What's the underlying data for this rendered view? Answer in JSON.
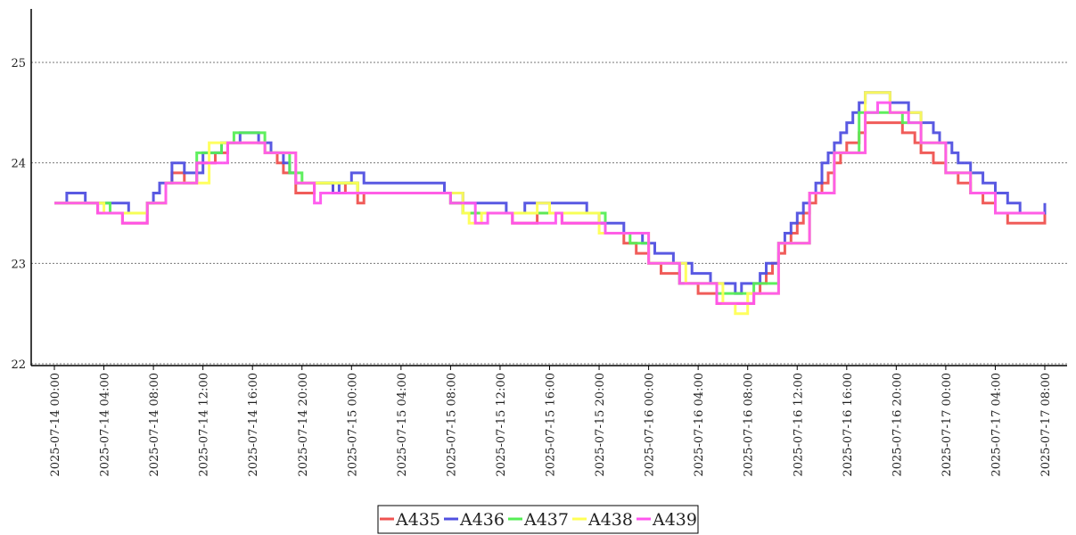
{
  "chart_data": {
    "type": "line",
    "step": true,
    "title": "",
    "xlabel": "",
    "ylabel": "",
    "ylim": [
      22,
      25.5
    ],
    "yticks": [
      "22",
      "23",
      "24",
      "25"
    ],
    "xticks": [
      "2025-07-14 00:00",
      "2025-07-14 04:00",
      "2025-07-14 08:00",
      "2025-07-14 12:00",
      "2025-07-14 16:00",
      "2025-07-14 20:00",
      "2025-07-15 00:00",
      "2025-07-15 04:00",
      "2025-07-15 08:00",
      "2025-07-15 12:00",
      "2025-07-15 16:00",
      "2025-07-15 20:00",
      "2025-07-16 00:00",
      "2025-07-16 04:00",
      "2025-07-16 08:00",
      "2025-07-16 12:00",
      "2025-07-16 16:00",
      "2025-07-16 20:00",
      "2025-07-17 00:00",
      "2025-07-17 04:00",
      "2025-07-17 08:00"
    ],
    "grid": "horizontal dotted",
    "legend_position": "bottom",
    "series": [
      {
        "name": "A435",
        "color": "#ef5350",
        "points": [
          [
            "2025-07-14 00:00",
            23.6
          ],
          [
            "2025-07-14 03:30",
            23.5
          ],
          [
            "2025-07-14 05:30",
            23.4
          ],
          [
            "2025-07-14 07:30",
            23.6
          ],
          [
            "2025-07-14 09:00",
            23.8
          ],
          [
            "2025-07-14 09:30",
            23.9
          ],
          [
            "2025-07-14 10:30",
            23.8
          ],
          [
            "2025-07-14 11:30",
            24.0
          ],
          [
            "2025-07-14 13:00",
            24.1
          ],
          [
            "2025-07-14 14:00",
            24.2
          ],
          [
            "2025-07-14 17:00",
            24.1
          ],
          [
            "2025-07-14 18:00",
            24.0
          ],
          [
            "2025-07-14 18:30",
            23.9
          ],
          [
            "2025-07-14 19:30",
            23.7
          ],
          [
            "2025-07-14 21:00",
            23.8
          ],
          [
            "2025-07-14 22:30",
            23.7
          ],
          [
            "2025-07-14 23:30",
            23.8
          ],
          [
            "2025-07-15 00:30",
            23.6
          ],
          [
            "2025-07-15 01:00",
            23.7
          ],
          [
            "2025-07-15 08:00",
            23.6
          ],
          [
            "2025-07-15 09:00",
            23.5
          ],
          [
            "2025-07-15 13:00",
            23.4
          ],
          [
            "2025-07-15 15:00",
            23.5
          ],
          [
            "2025-07-15 17:00",
            23.4
          ],
          [
            "2025-07-15 20:30",
            23.3
          ],
          [
            "2025-07-15 22:00",
            23.2
          ],
          [
            "2025-07-15 23:00",
            23.1
          ],
          [
            "2025-07-16 00:00",
            23.0
          ],
          [
            "2025-07-16 01:00",
            22.9
          ],
          [
            "2025-07-16 02:30",
            22.8
          ],
          [
            "2025-07-16 04:00",
            22.7
          ],
          [
            "2025-07-16 05:30",
            22.6
          ],
          [
            "2025-07-16 08:30",
            22.7
          ],
          [
            "2025-07-16 09:00",
            22.8
          ],
          [
            "2025-07-16 09:30",
            22.9
          ],
          [
            "2025-07-16 10:00",
            23.0
          ],
          [
            "2025-07-16 10:30",
            23.1
          ],
          [
            "2025-07-16 11:00",
            23.2
          ],
          [
            "2025-07-16 11:30",
            23.3
          ],
          [
            "2025-07-16 12:00",
            23.4
          ],
          [
            "2025-07-16 12:30",
            23.5
          ],
          [
            "2025-07-16 13:00",
            23.6
          ],
          [
            "2025-07-16 13:30",
            23.7
          ],
          [
            "2025-07-16 14:00",
            23.8
          ],
          [
            "2025-07-16 14:30",
            23.9
          ],
          [
            "2025-07-16 15:00",
            24.0
          ],
          [
            "2025-07-16 15:30",
            24.1
          ],
          [
            "2025-07-16 16:00",
            24.2
          ],
          [
            "2025-07-16 17:00",
            24.3
          ],
          [
            "2025-07-16 17:30",
            24.4
          ],
          [
            "2025-07-16 20:30",
            24.3
          ],
          [
            "2025-07-16 21:30",
            24.2
          ],
          [
            "2025-07-16 22:00",
            24.1
          ],
          [
            "2025-07-16 23:00",
            24.0
          ],
          [
            "2025-07-17 00:00",
            23.9
          ],
          [
            "2025-07-17 01:00",
            23.8
          ],
          [
            "2025-07-17 02:00",
            23.7
          ],
          [
            "2025-07-17 03:00",
            23.6
          ],
          [
            "2025-07-17 04:00",
            23.5
          ],
          [
            "2025-07-17 05:00",
            23.4
          ],
          [
            "2025-07-17 08:00",
            23.5
          ]
        ]
      },
      {
        "name": "A436",
        "color": "#5050e0",
        "points": [
          [
            "2025-07-14 00:00",
            23.6
          ],
          [
            "2025-07-14 01:00",
            23.7
          ],
          [
            "2025-07-14 02:30",
            23.6
          ],
          [
            "2025-07-14 06:00",
            23.5
          ],
          [
            "2025-07-14 07:30",
            23.6
          ],
          [
            "2025-07-14 08:00",
            23.7
          ],
          [
            "2025-07-14 08:30",
            23.8
          ],
          [
            "2025-07-14 09:30",
            24.0
          ],
          [
            "2025-07-14 10:30",
            23.9
          ],
          [
            "2025-07-14 12:00",
            24.1
          ],
          [
            "2025-07-14 13:30",
            24.2
          ],
          [
            "2025-07-14 15:00",
            24.3
          ],
          [
            "2025-07-14 16:30",
            24.2
          ],
          [
            "2025-07-14 17:30",
            24.1
          ],
          [
            "2025-07-14 18:30",
            24.0
          ],
          [
            "2025-07-14 19:00",
            23.9
          ],
          [
            "2025-07-14 19:30",
            23.8
          ],
          [
            "2025-07-14 22:30",
            23.7
          ],
          [
            "2025-07-14 23:00",
            23.8
          ],
          [
            "2025-07-15 00:00",
            23.9
          ],
          [
            "2025-07-15 01:00",
            23.8
          ],
          [
            "2025-07-15 07:30",
            23.7
          ],
          [
            "2025-07-15 09:00",
            23.6
          ],
          [
            "2025-07-15 12:30",
            23.5
          ],
          [
            "2025-07-15 14:00",
            23.6
          ],
          [
            "2025-07-15 19:00",
            23.5
          ],
          [
            "2025-07-15 20:00",
            23.4
          ],
          [
            "2025-07-15 22:00",
            23.3
          ],
          [
            "2025-07-15 23:30",
            23.2
          ],
          [
            "2025-07-16 00:30",
            23.1
          ],
          [
            "2025-07-16 02:00",
            23.0
          ],
          [
            "2025-07-16 03:30",
            22.9
          ],
          [
            "2025-07-16 05:00",
            22.8
          ],
          [
            "2025-07-16 07:00",
            22.7
          ],
          [
            "2025-07-16 07:30",
            22.8
          ],
          [
            "2025-07-16 09:00",
            22.9
          ],
          [
            "2025-07-16 09:30",
            23.0
          ],
          [
            "2025-07-16 10:30",
            23.2
          ],
          [
            "2025-07-16 11:00",
            23.3
          ],
          [
            "2025-07-16 11:30",
            23.4
          ],
          [
            "2025-07-16 12:00",
            23.5
          ],
          [
            "2025-07-16 12:30",
            23.6
          ],
          [
            "2025-07-16 13:00",
            23.7
          ],
          [
            "2025-07-16 13:30",
            23.8
          ],
          [
            "2025-07-16 14:00",
            24.0
          ],
          [
            "2025-07-16 14:30",
            24.1
          ],
          [
            "2025-07-16 15:00",
            24.2
          ],
          [
            "2025-07-16 15:30",
            24.3
          ],
          [
            "2025-07-16 16:00",
            24.4
          ],
          [
            "2025-07-16 16:30",
            24.5
          ],
          [
            "2025-07-16 17:00",
            24.6
          ],
          [
            "2025-07-16 17:30",
            24.7
          ],
          [
            "2025-07-16 19:30",
            24.6
          ],
          [
            "2025-07-16 21:00",
            24.5
          ],
          [
            "2025-07-16 22:00",
            24.4
          ],
          [
            "2025-07-16 23:00",
            24.3
          ],
          [
            "2025-07-16 23:30",
            24.2
          ],
          [
            "2025-07-17 00:30",
            24.1
          ],
          [
            "2025-07-17 01:00",
            24.0
          ],
          [
            "2025-07-17 02:00",
            23.9
          ],
          [
            "2025-07-17 03:00",
            23.8
          ],
          [
            "2025-07-17 04:00",
            23.7
          ],
          [
            "2025-07-17 05:00",
            23.6
          ],
          [
            "2025-07-17 06:00",
            23.5
          ],
          [
            "2025-07-17 08:00",
            23.6
          ]
        ]
      },
      {
        "name": "A437",
        "color": "#55ee55",
        "points": [
          [
            "2025-07-14 00:00",
            23.6
          ],
          [
            "2025-07-14 03:30",
            23.6
          ],
          [
            "2025-07-14 04:30",
            23.5
          ],
          [
            "2025-07-14 07:30",
            23.6
          ],
          [
            "2025-07-14 09:00",
            23.8
          ],
          [
            "2025-07-14 11:30",
            24.1
          ],
          [
            "2025-07-14 13:30",
            24.2
          ],
          [
            "2025-07-14 14:30",
            24.3
          ],
          [
            "2025-07-14 17:00",
            24.1
          ],
          [
            "2025-07-14 19:00",
            23.9
          ],
          [
            "2025-07-14 20:00",
            23.8
          ],
          [
            "2025-07-14 23:30",
            23.8
          ],
          [
            "2025-07-15 00:30",
            23.7
          ],
          [
            "2025-07-15 08:00",
            23.6
          ],
          [
            "2025-07-15 09:00",
            23.5
          ],
          [
            "2025-07-15 13:30",
            23.5
          ],
          [
            "2025-07-15 15:00",
            23.5
          ],
          [
            "2025-07-15 20:30",
            23.3
          ],
          [
            "2025-07-15 22:30",
            23.2
          ],
          [
            "2025-07-16 00:00",
            23.0
          ],
          [
            "2025-07-16 02:30",
            22.8
          ],
          [
            "2025-07-16 05:30",
            22.7
          ],
          [
            "2025-07-16 08:30",
            22.8
          ],
          [
            "2025-07-16 10:30",
            23.2
          ],
          [
            "2025-07-16 13:00",
            23.7
          ],
          [
            "2025-07-16 15:00",
            24.1
          ],
          [
            "2025-07-16 17:00",
            24.5
          ],
          [
            "2025-07-16 20:30",
            24.4
          ],
          [
            "2025-07-16 22:00",
            24.2
          ],
          [
            "2025-07-17 00:00",
            23.9
          ],
          [
            "2025-07-17 02:00",
            23.7
          ],
          [
            "2025-07-17 04:00",
            23.5
          ],
          [
            "2025-07-17 08:00",
            23.5
          ]
        ]
      },
      {
        "name": "A438",
        "color": "#ffff55",
        "points": [
          [
            "2025-07-14 00:00",
            23.6
          ],
          [
            "2025-07-14 04:00",
            23.5
          ],
          [
            "2025-07-14 07:30",
            23.6
          ],
          [
            "2025-07-14 09:00",
            23.8
          ],
          [
            "2025-07-14 12:30",
            24.2
          ],
          [
            "2025-07-14 14:00",
            24.2
          ],
          [
            "2025-07-14 17:00",
            24.1
          ],
          [
            "2025-07-14 19:30",
            23.8
          ],
          [
            "2025-07-15 00:30",
            23.7
          ],
          [
            "2025-07-15 09:00",
            23.5
          ],
          [
            "2025-07-15 09:30",
            23.4
          ],
          [
            "2025-07-15 10:30",
            23.5
          ],
          [
            "2025-07-15 15:00",
            23.6
          ],
          [
            "2025-07-15 16:00",
            23.5
          ],
          [
            "2025-07-15 20:00",
            23.3
          ],
          [
            "2025-07-16 00:00",
            23.0
          ],
          [
            "2025-07-16 03:00",
            22.8
          ],
          [
            "2025-07-16 06:00",
            22.6
          ],
          [
            "2025-07-16 07:00",
            22.5
          ],
          [
            "2025-07-16 08:00",
            22.7
          ],
          [
            "2025-07-16 10:30",
            23.2
          ],
          [
            "2025-07-16 13:00",
            23.7
          ],
          [
            "2025-07-16 15:00",
            24.1
          ],
          [
            "2025-07-16 17:30",
            24.7
          ],
          [
            "2025-07-16 19:30",
            24.5
          ],
          [
            "2025-07-16 22:00",
            24.2
          ],
          [
            "2025-07-17 00:00",
            23.9
          ],
          [
            "2025-07-17 02:00",
            23.7
          ],
          [
            "2025-07-17 04:00",
            23.5
          ],
          [
            "2025-07-17 08:00",
            23.5
          ]
        ]
      },
      {
        "name": "A439",
        "color": "#ff55ee",
        "points": [
          [
            "2025-07-14 00:00",
            23.6
          ],
          [
            "2025-07-14 03:30",
            23.5
          ],
          [
            "2025-07-14 05:30",
            23.4
          ],
          [
            "2025-07-14 07:30",
            23.6
          ],
          [
            "2025-07-14 09:00",
            23.8
          ],
          [
            "2025-07-14 11:30",
            24.0
          ],
          [
            "2025-07-14 14:00",
            24.2
          ],
          [
            "2025-07-14 17:00",
            24.1
          ],
          [
            "2025-07-14 19:30",
            23.8
          ],
          [
            "2025-07-14 21:00",
            23.6
          ],
          [
            "2025-07-14 21:30",
            23.7
          ],
          [
            "2025-07-15 00:30",
            23.7
          ],
          [
            "2025-07-15 08:00",
            23.6
          ],
          [
            "2025-07-15 10:00",
            23.4
          ],
          [
            "2025-07-15 11:00",
            23.5
          ],
          [
            "2025-07-15 13:00",
            23.4
          ],
          [
            "2025-07-15 16:30",
            23.5
          ],
          [
            "2025-07-15 17:00",
            23.4
          ],
          [
            "2025-07-15 20:30",
            23.3
          ],
          [
            "2025-07-16 00:00",
            23.0
          ],
          [
            "2025-07-16 02:30",
            22.8
          ],
          [
            "2025-07-16 05:30",
            22.6
          ],
          [
            "2025-07-16 08:30",
            22.7
          ],
          [
            "2025-07-16 10:30",
            23.2
          ],
          [
            "2025-07-16 13:00",
            23.7
          ],
          [
            "2025-07-16 15:00",
            24.1
          ],
          [
            "2025-07-16 17:30",
            24.5
          ],
          [
            "2025-07-16 18:30",
            24.6
          ],
          [
            "2025-07-16 19:30",
            24.5
          ],
          [
            "2025-07-16 21:00",
            24.4
          ],
          [
            "2025-07-16 22:00",
            24.2
          ],
          [
            "2025-07-17 00:00",
            23.9
          ],
          [
            "2025-07-17 02:00",
            23.7
          ],
          [
            "2025-07-17 04:00",
            23.5
          ],
          [
            "2025-07-17 08:00",
            23.5
          ]
        ]
      }
    ]
  }
}
